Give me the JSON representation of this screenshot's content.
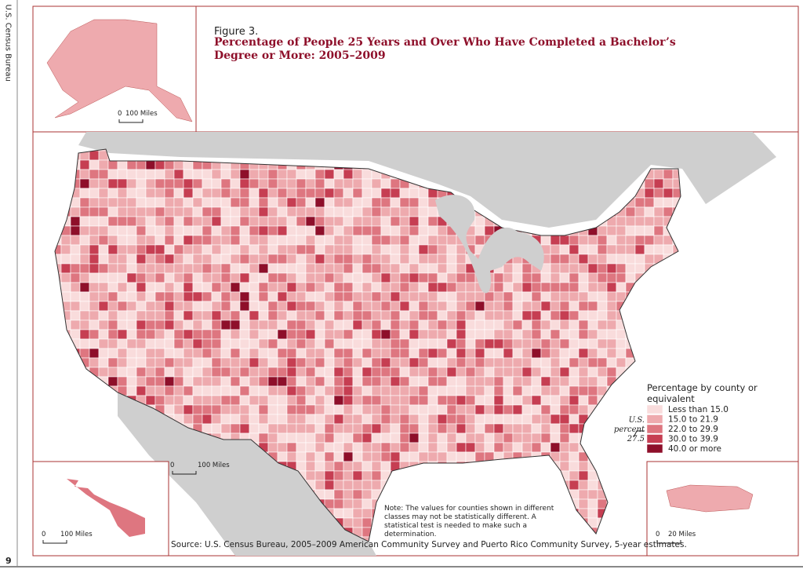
{
  "side": {
    "publisher": "U.S. Census Bureau",
    "page_number": "9"
  },
  "header": {
    "figure_label": "Figure 3.",
    "title": "Percentage of People 25 Years and Over Who Have Completed a Bachelor’s Degree or More: 2005–2009"
  },
  "scales": {
    "alaska": {
      "zero": "0",
      "label": "100 Miles"
    },
    "mainland": {
      "zero": "0",
      "label": "100 Miles"
    },
    "hawaii": {
      "zero": "0",
      "label": "100 Miles"
    },
    "puerto_rico": {
      "zero": "0",
      "label": "20 Miles"
    }
  },
  "legend": {
    "title": "Percentage by county or equivalent",
    "classes": [
      {
        "label": "Less than 15.0",
        "color": "#f9dcdc"
      },
      {
        "label": "15.0 to 21.9",
        "color": "#eeaaae"
      },
      {
        "label": "22.0 to 29.9",
        "color": "#de7680"
      },
      {
        "label": "30.0 to 39.9",
        "color": "#c63e52"
      },
      {
        "label": "40.0 or more",
        "color": "#8e0f2a"
      }
    ]
  },
  "us_percent": {
    "label": "U.S. percent",
    "value": 27.5
  },
  "note": "Note: The values for counties shown in different classes may not be statistically different. A statistical test is needed to make such a determination.",
  "source": "Source: U.S. Census Bureau, 2005–2009 American Community Survey and Puerto Rico Community Survey, 5-year estimates."
}
